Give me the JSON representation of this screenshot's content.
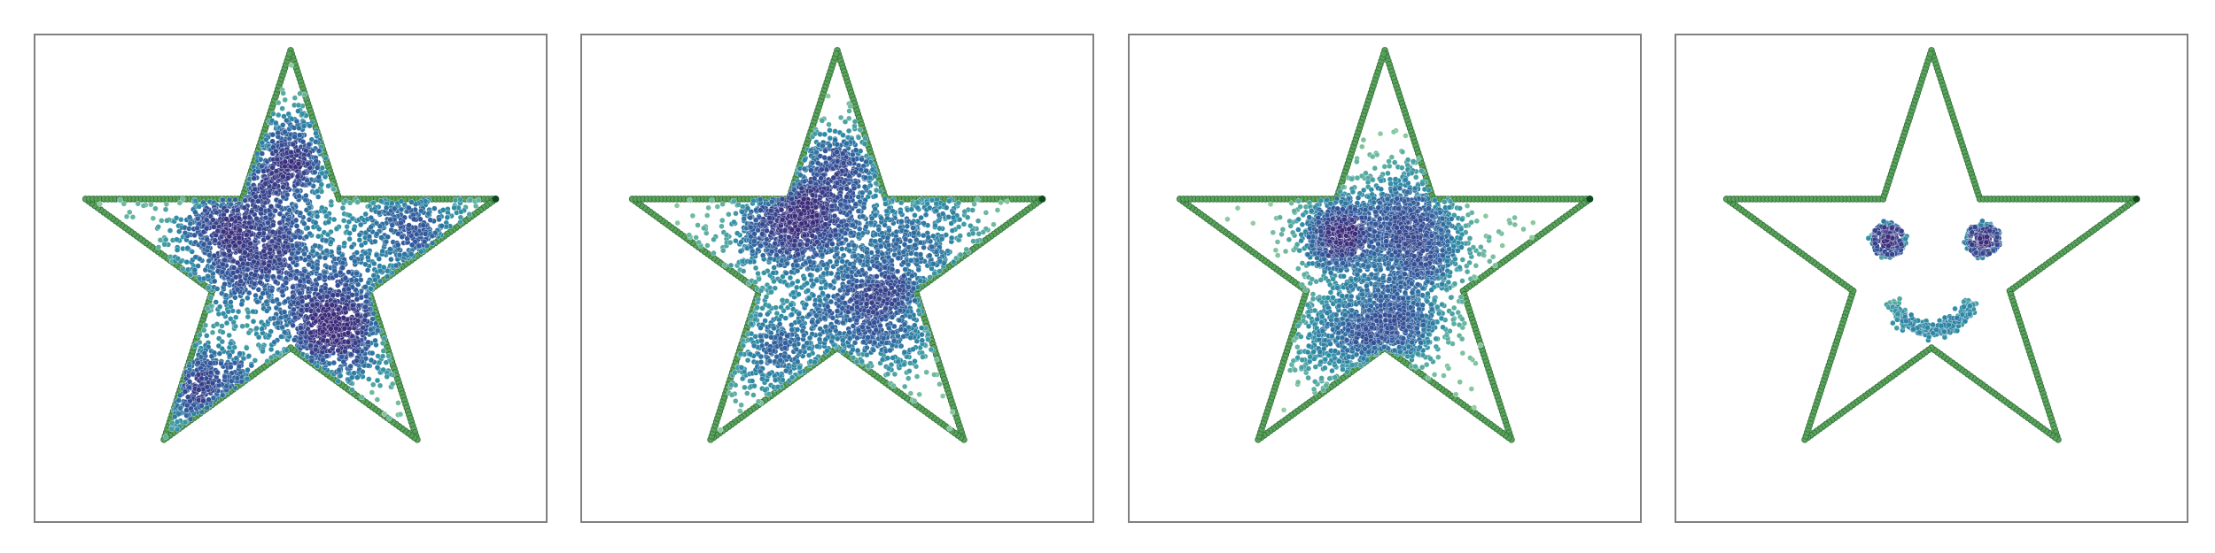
{
  "chart_data": [
    {
      "type": "scatter",
      "title": "",
      "xlabel": "",
      "ylabel": "",
      "grid": false,
      "legend": "none",
      "boundary": {
        "shape": "five-pointed star",
        "vertices": [
          [
            0.0,
            1.0
          ],
          [
            0.2245,
            0.309
          ],
          [
            0.9511,
            0.309
          ],
          [
            0.3633,
            -0.118
          ],
          [
            0.5878,
            -0.809
          ],
          [
            0.0,
            -0.382
          ],
          [
            -0.5878,
            -0.809
          ],
          [
            -0.3633,
            -0.118
          ],
          [
            -0.9511,
            0.309
          ],
          [
            -0.2245,
            0.309
          ]
        ],
        "marker_color": "#5aa35a"
      },
      "clusters": [
        {
          "center": [
            -0.21,
            0.13
          ],
          "spread": 0.17,
          "count": 900
        },
        {
          "center": [
            0.21,
            -0.26
          ],
          "spread": 0.16,
          "count": 800
        },
        {
          "center": [
            -0.42,
            -0.58
          ],
          "spread": 0.12,
          "count": 300
        },
        {
          "center": [
            0.6,
            0.2
          ],
          "spread": 0.16,
          "count": 280
        },
        {
          "center": [
            0.0,
            0.5
          ],
          "spread": 0.12,
          "count": 350
        },
        {
          "center": [
            0.0,
            0.0
          ],
          "spread": 0.5,
          "count": 700
        }
      ],
      "colormap": [
        "#a6d99c",
        "#63b3a0",
        "#2e8ca5",
        "#32599c",
        "#3b2b79"
      ]
    },
    {
      "type": "scatter",
      "title": "",
      "xlabel": "",
      "ylabel": "",
      "grid": false,
      "legend": "none",
      "boundary": {
        "shape": "five-pointed star",
        "vertices": [
          [
            0.0,
            1.0
          ],
          [
            0.2245,
            0.309
          ],
          [
            0.9511,
            0.309
          ],
          [
            0.3633,
            -0.118
          ],
          [
            0.5878,
            -0.809
          ],
          [
            0.0,
            -0.382
          ],
          [
            -0.5878,
            -0.809
          ],
          [
            -0.3633,
            -0.118
          ],
          [
            -0.9511,
            0.309
          ],
          [
            -0.2245,
            0.309
          ]
        ],
        "marker_color": "#5aa35a"
      },
      "clusters": [
        {
          "center": [
            -0.2,
            0.22
          ],
          "spread": 0.14,
          "count": 850
        },
        {
          "center": [
            0.16,
            -0.2
          ],
          "spread": 0.16,
          "count": 750
        },
        {
          "center": [
            0.0,
            0.48
          ],
          "spread": 0.1,
          "count": 250
        },
        {
          "center": [
            -0.3,
            -0.4
          ],
          "spread": 0.15,
          "count": 300
        },
        {
          "center": [
            0.35,
            0.2
          ],
          "spread": 0.18,
          "count": 350
        },
        {
          "center": [
            0.0,
            0.0
          ],
          "spread": 0.45,
          "count": 550
        }
      ],
      "colormap": [
        "#a6d99c",
        "#63b3a0",
        "#2e8ca5",
        "#32599c",
        "#3b2b79"
      ]
    },
    {
      "type": "scatter",
      "title": "",
      "xlabel": "",
      "ylabel": "",
      "grid": false,
      "legend": "none",
      "boundary": {
        "shape": "five-pointed star",
        "vertices": [
          [
            0.0,
            1.0
          ],
          [
            0.2245,
            0.309
          ],
          [
            0.9511,
            0.309
          ],
          [
            0.3633,
            -0.118
          ],
          [
            0.5878,
            -0.809
          ],
          [
            0.0,
            -0.382
          ],
          [
            -0.5878,
            -0.809
          ],
          [
            -0.3633,
            -0.118
          ],
          [
            -0.9511,
            0.309
          ],
          [
            -0.2245,
            0.309
          ]
        ],
        "marker_color": "#5aa35a"
      },
      "clusters": [
        {
          "center": [
            -0.21,
            0.14
          ],
          "spread": 0.1,
          "count": 700
        },
        {
          "center": [
            0.14,
            0.1
          ],
          "spread": 0.13,
          "count": 800
        },
        {
          "center": [
            0.04,
            -0.27
          ],
          "spread": 0.12,
          "count": 550
        },
        {
          "center": [
            -0.18,
            -0.33
          ],
          "spread": 0.14,
          "count": 450
        },
        {
          "center": [
            0.05,
            0.3
          ],
          "spread": 0.12,
          "count": 250
        },
        {
          "center": [
            0.0,
            0.0
          ],
          "spread": 0.3,
          "count": 350
        }
      ],
      "colormap": [
        "#a6d99c",
        "#63b3a0",
        "#2e8ca5",
        "#32599c",
        "#3b2b79"
      ]
    },
    {
      "type": "scatter",
      "title": "",
      "xlabel": "",
      "ylabel": "",
      "grid": false,
      "legend": "none",
      "boundary": {
        "shape": "five-pointed star",
        "vertices": [
          [
            0.0,
            1.0
          ],
          [
            0.2245,
            0.309
          ],
          [
            0.9511,
            0.309
          ],
          [
            0.3633,
            -0.118
          ],
          [
            0.5878,
            -0.809
          ],
          [
            0.0,
            -0.382
          ],
          [
            -0.5878,
            -0.809
          ],
          [
            -0.3633,
            -0.118
          ],
          [
            -0.9511,
            0.309
          ],
          [
            -0.2245,
            0.309
          ]
        ],
        "marker_color": "#5aa35a"
      },
      "face": {
        "left_eye": {
          "center": [
            -0.2,
            0.12
          ],
          "radius": 0.06,
          "core_count": 170,
          "ring_count": 150
        },
        "right_eye": {
          "center": [
            0.24,
            0.12
          ],
          "radius": 0.06,
          "core_count": 170,
          "ring_count": 150
        },
        "smile": {
          "center": [
            0.0,
            -0.1
          ],
          "radius": 0.2,
          "arc_start_deg": 200,
          "arc_end_deg": 340,
          "count": 260
        }
      },
      "colormap": [
        "#a6d99c",
        "#63b3a0",
        "#2e8ca5",
        "#32599c",
        "#3b2b79"
      ]
    }
  ]
}
